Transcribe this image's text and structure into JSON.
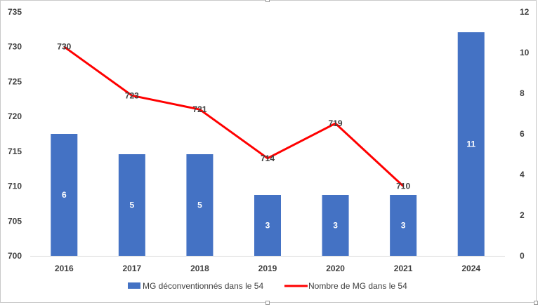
{
  "chart_data": {
    "type": "bar+line",
    "categories": [
      "2016",
      "2017",
      "2018",
      "2019",
      "2020",
      "2021",
      "2024"
    ],
    "series": [
      {
        "name": "MG déconventionnés dans le 54",
        "type": "bar",
        "axis": "right",
        "color": "#4472C4",
        "values": [
          6,
          5,
          5,
          3,
          3,
          3,
          11
        ]
      },
      {
        "name": "Nombre de MG dans le 54",
        "type": "line",
        "axis": "left",
        "color": "#FF0000",
        "values": [
          730,
          723,
          721,
          714,
          719,
          710,
          null
        ]
      }
    ],
    "y_left": {
      "min": 700,
      "max": 735,
      "step": 5,
      "ticks": [
        "700",
        "705",
        "710",
        "715",
        "720",
        "725",
        "730",
        "735"
      ]
    },
    "y_right": {
      "min": 0,
      "max": 12,
      "step": 2,
      "ticks": [
        "0",
        "2",
        "4",
        "6",
        "8",
        "10",
        "12"
      ]
    },
    "grid": false,
    "legend_position": "bottom",
    "title": ""
  }
}
